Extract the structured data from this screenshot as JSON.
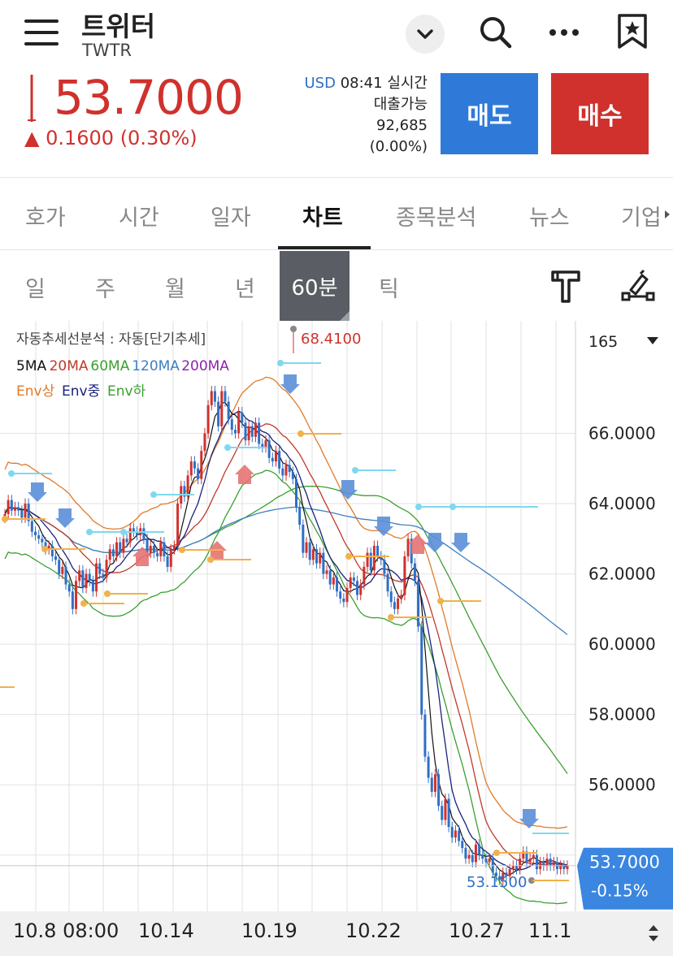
{
  "header": {
    "title": "트위터",
    "ticker": "TWTR",
    "icons": [
      "menu-icon",
      "chevron-down-icon",
      "search-icon",
      "more-icon",
      "bookmark-icon"
    ]
  },
  "quote": {
    "price": "53.7000",
    "change": "▲ 0.1600 (0.30%)",
    "currency": "USD",
    "time": "08:41",
    "realtime": "실시간",
    "loan_label": "대출가능",
    "loan_qty": "92,685",
    "loan_pct": "(0.00%)",
    "sell_label": "매도",
    "buy_label": "매수",
    "up_color": "#d0312d",
    "down_color": "#2f7ad9"
  },
  "tabs": [
    {
      "label": "호가"
    },
    {
      "label": "시간"
    },
    {
      "label": "일자"
    },
    {
      "label": "차트",
      "active": true
    },
    {
      "label": "종목분석"
    },
    {
      "label": "뉴스"
    },
    {
      "label": "기업"
    }
  ],
  "periods": [
    {
      "label": "일"
    },
    {
      "label": "주"
    },
    {
      "label": "월"
    },
    {
      "label": "년"
    },
    {
      "label": "60분",
      "active": true
    },
    {
      "label": "틱"
    }
  ],
  "tools": [
    "indicator-icon",
    "draw-icon"
  ],
  "chart_data": {
    "type": "candlestick",
    "indicator_title": "자동추세선분석 : 자동[단기추세]",
    "ma_legend": [
      {
        "name": "5MA",
        "color": "#111111"
      },
      {
        "name": "20MA",
        "color": "#c0392b"
      },
      {
        "name": "60MA",
        "color": "#3aa030"
      },
      {
        "name": "120MA",
        "color": "#3f7fc2"
      },
      {
        "name": "200MA",
        "color": "#8e24aa"
      }
    ],
    "env_legend": [
      {
        "name": "Env상",
        "color": "#e07a2a"
      },
      {
        "name": "Env중",
        "color": "#1a237e"
      },
      {
        "name": "Env하",
        "color": "#3aa030"
      }
    ],
    "count_label": "165",
    "y_ticks": [
      "66.0000",
      "64.0000",
      "62.0000",
      "60.0000",
      "58.0000",
      "56.0000"
    ],
    "ylim": [
      52.4,
      69.2
    ],
    "high_label": "68.4100",
    "low_label": "53.1500",
    "last_price": "53.7000",
    "last_change": "-0.15%",
    "x_labels": [
      "10.8 08:00",
      "10.14",
      "10.19",
      "10.22",
      "10.27",
      "11.1"
    ],
    "closes": [
      63.7,
      64.1,
      63.8,
      63.9,
      63.8,
      63.6,
      64.0,
      63.5,
      63.2,
      63.1,
      63.0,
      62.9,
      62.7,
      62.8,
      62.5,
      62.4,
      62.0,
      62.2,
      61.7,
      61.5,
      61.0,
      61.8,
      62.1,
      61.6,
      62.0,
      61.8,
      61.5,
      62.3,
      62.0,
      61.9,
      62.4,
      62.7,
      62.5,
      62.9,
      62.6,
      63.0,
      62.9,
      63.3,
      63.2,
      63.1,
      63.3,
      63.0,
      62.6,
      62.8,
      62.6,
      62.5,
      62.9,
      62.5,
      62.2,
      62.7,
      62.8,
      64.0,
      64.5,
      64.2,
      64.8,
      65.2,
      65.0,
      64.7,
      65.5,
      66.0,
      66.8,
      67.2,
      66.9,
      66.2,
      67.2,
      66.9,
      66.4,
      66.1,
      66.0,
      66.6,
      66.3,
      65.8,
      66.2,
      65.9,
      66.3,
      65.7,
      65.6,
      65.8,
      65.3,
      65.2,
      65.5,
      65.0,
      64.8,
      65.1,
      64.9,
      64.7,
      63.9,
      63.4,
      62.6,
      62.9,
      62.4,
      62.7,
      62.3,
      62.6,
      62.0,
      62.1,
      61.7,
      61.9,
      61.5,
      61.3,
      61.2,
      61.6,
      61.9,
      61.8,
      61.4,
      61.7,
      62.2,
      62.6,
      62.1,
      62.8,
      62.5,
      62.4,
      62.0,
      61.5,
      61.2,
      61.0,
      61.3,
      61.4,
      62.5,
      63.0,
      62.3,
      61.8,
      60.5,
      58.0,
      56.8,
      56.2,
      55.8,
      56.3,
      55.4,
      55.0,
      55.6,
      54.8,
      54.5,
      54.7,
      54.4,
      54.2,
      53.9,
      54.0,
      53.8,
      54.3,
      54.0,
      53.9,
      53.8,
      53.9,
      53.5,
      53.4,
      53.3,
      53.5,
      53.4,
      53.6,
      53.7,
      53.6,
      53.9,
      54.1,
      53.8,
      53.9,
      54.0,
      53.6,
      53.8,
      53.7,
      53.9,
      53.7,
      53.8,
      53.6,
      53.7,
      53.6,
      53.7
    ]
  },
  "date_labels": [
    "10.8 08:00",
    "10.14",
    "10.19",
    "10.22",
    "10.27",
    "11.1"
  ]
}
